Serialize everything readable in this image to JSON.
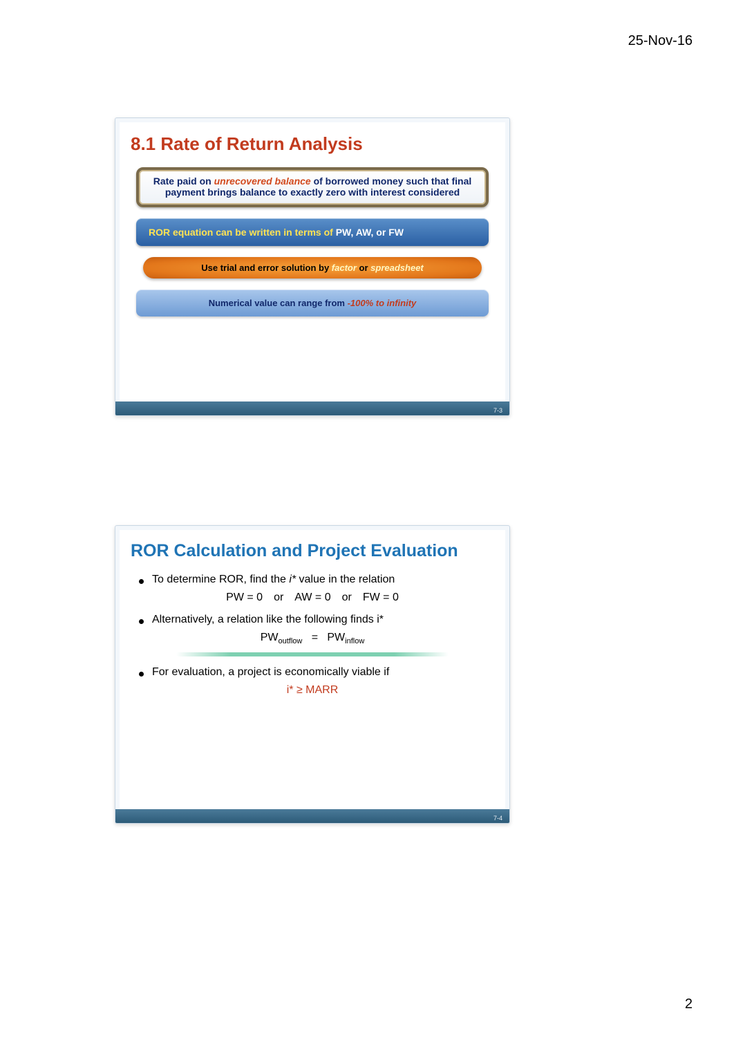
{
  "header": {
    "date": "25-Nov-16"
  },
  "footer": {
    "page": "2"
  },
  "slide1": {
    "title": "8.1 Rate of Return Analysis",
    "def": {
      "pre": "Rate paid on ",
      "em": "unrecovered balance",
      "post": " of borrowed money such that final payment brings balance to exactly zero with interest considered"
    },
    "bluebox": {
      "yellow": "ROR equation can be written in terms of ",
      "white": "PW, AW, or FW"
    },
    "orange": {
      "pre": "Use ",
      "mid1": "trial and error solution by ",
      "em1": "factor",
      "mid2": " or ",
      "em2": "spreadsheet"
    },
    "bluesoft": {
      "pre": "Numerical value can range from ",
      "range": "-100% to infinity"
    },
    "num": "7-3"
  },
  "slide2": {
    "title": "ROR Calculation and Project Evaluation",
    "b1": "To determine ROR, find the ",
    "b1_i": "i*",
    "b1_post": " value in the relation",
    "eq1": "PW = 0 or AW = 0 or FW = 0",
    "b2": "Alternatively, a relation like the following finds i*",
    "eq2_l": "PW",
    "eq2_ls": "outflow",
    "eq2_m": "=",
    "eq2_r": "PW",
    "eq2_rs": "inflow",
    "b3": "For evaluation, a project is economically viable if",
    "eq3": "i* ≥ MARR",
    "num": "7-4"
  }
}
